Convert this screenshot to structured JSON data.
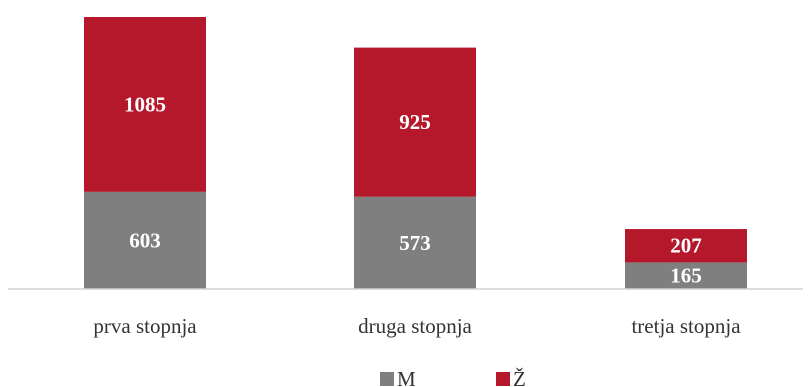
{
  "chart_data": {
    "type": "bar",
    "stacked": true,
    "categories": [
      "prva stopnja",
      "druga stopnja",
      "tretja stopnja"
    ],
    "series": [
      {
        "name": "M",
        "values": [
          603,
          573,
          165
        ],
        "color": "#7f7f7f"
      },
      {
        "name": "Ž",
        "values": [
          1085,
          925,
          207
        ],
        "color": "#b5172b"
      }
    ],
    "title": "",
    "xlabel": "",
    "ylabel": "",
    "ylim": [
      0,
      1700
    ],
    "grid": false,
    "data_labels": true,
    "legend_position": "bottom"
  }
}
